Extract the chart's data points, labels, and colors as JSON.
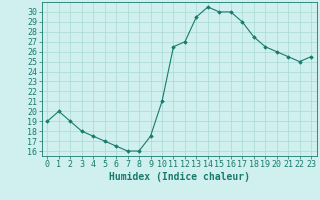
{
  "xlabel": "Humidex (Indice chaleur)",
  "x": [
    0,
    1,
    2,
    3,
    4,
    5,
    6,
    7,
    8,
    9,
    10,
    11,
    12,
    13,
    14,
    15,
    16,
    17,
    18,
    19,
    20,
    21,
    22,
    23
  ],
  "y": [
    19,
    20,
    19,
    18,
    17.5,
    17,
    16.5,
    16,
    16,
    17.5,
    21,
    26.5,
    27,
    29.5,
    30.5,
    30,
    30,
    29,
    27.5,
    26.5,
    26,
    25.5,
    25,
    25.5
  ],
  "line_color": "#1a7a6e",
  "marker": "D",
  "marker_size": 1.8,
  "bg_color": "#cff0ee",
  "grid_color": "#aad8d4",
  "ylim": [
    15.5,
    31
  ],
  "xlim": [
    -0.5,
    23.5
  ],
  "yticks": [
    16,
    17,
    18,
    19,
    20,
    21,
    22,
    23,
    24,
    25,
    26,
    27,
    28,
    29,
    30
  ],
  "xticks": [
    0,
    1,
    2,
    3,
    4,
    5,
    6,
    7,
    8,
    9,
    10,
    11,
    12,
    13,
    14,
    15,
    16,
    17,
    18,
    19,
    20,
    21,
    22,
    23
  ],
  "xtick_labels": [
    "0",
    "1",
    "2",
    "3",
    "4",
    "5",
    "6",
    "7",
    "8",
    "9",
    "10",
    "11",
    "12",
    "13",
    "14",
    "15",
    "16",
    "17",
    "18",
    "19",
    "20",
    "21",
    "22",
    "23"
  ],
  "tick_color": "#1a7a6e",
  "label_color": "#1a7a6e",
  "axis_color": "#1a7a6e",
  "xlabel_fontsize": 7,
  "tick_fontsize": 6
}
